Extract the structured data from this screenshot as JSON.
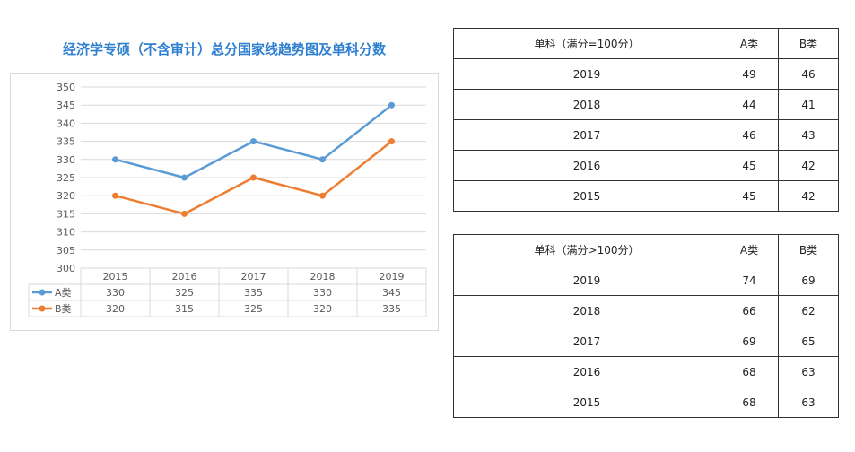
{
  "chart_data": {
    "type": "line",
    "title": "经济学专硕（不含审计）总分国家线趋势图及单科分数",
    "categories": [
      "2015",
      "2016",
      "2017",
      "2018",
      "2019"
    ],
    "series": [
      {
        "name": "A类",
        "values": [
          330,
          325,
          335,
          330,
          345
        ],
        "color": "#5b9bd5"
      },
      {
        "name": "B类",
        "values": [
          320,
          315,
          325,
          320,
          335
        ],
        "color": "#ed7d31"
      }
    ],
    "ylim": [
      300,
      350
    ],
    "yticks": [
      "300",
      "305",
      "310",
      "315",
      "320",
      "325",
      "330",
      "335",
      "340",
      "345",
      "350"
    ],
    "grid": true,
    "data_table": true
  },
  "table_low": {
    "header": [
      "单科（满分=100分）",
      "A类",
      "B类"
    ],
    "rows": [
      [
        "2019",
        "49",
        "46"
      ],
      [
        "2018",
        "44",
        "41"
      ],
      [
        "2017",
        "46",
        "43"
      ],
      [
        "2016",
        "45",
        "42"
      ],
      [
        "2015",
        "45",
        "42"
      ]
    ]
  },
  "table_high": {
    "header": [
      "单科（满分>100分）",
      "A类",
      "B类"
    ],
    "rows": [
      [
        "2019",
        "74",
        "69"
      ],
      [
        "2018",
        "66",
        "62"
      ],
      [
        "2017",
        "69",
        "65"
      ],
      [
        "2016",
        "68",
        "63"
      ],
      [
        "2015",
        "68",
        "63"
      ]
    ]
  }
}
